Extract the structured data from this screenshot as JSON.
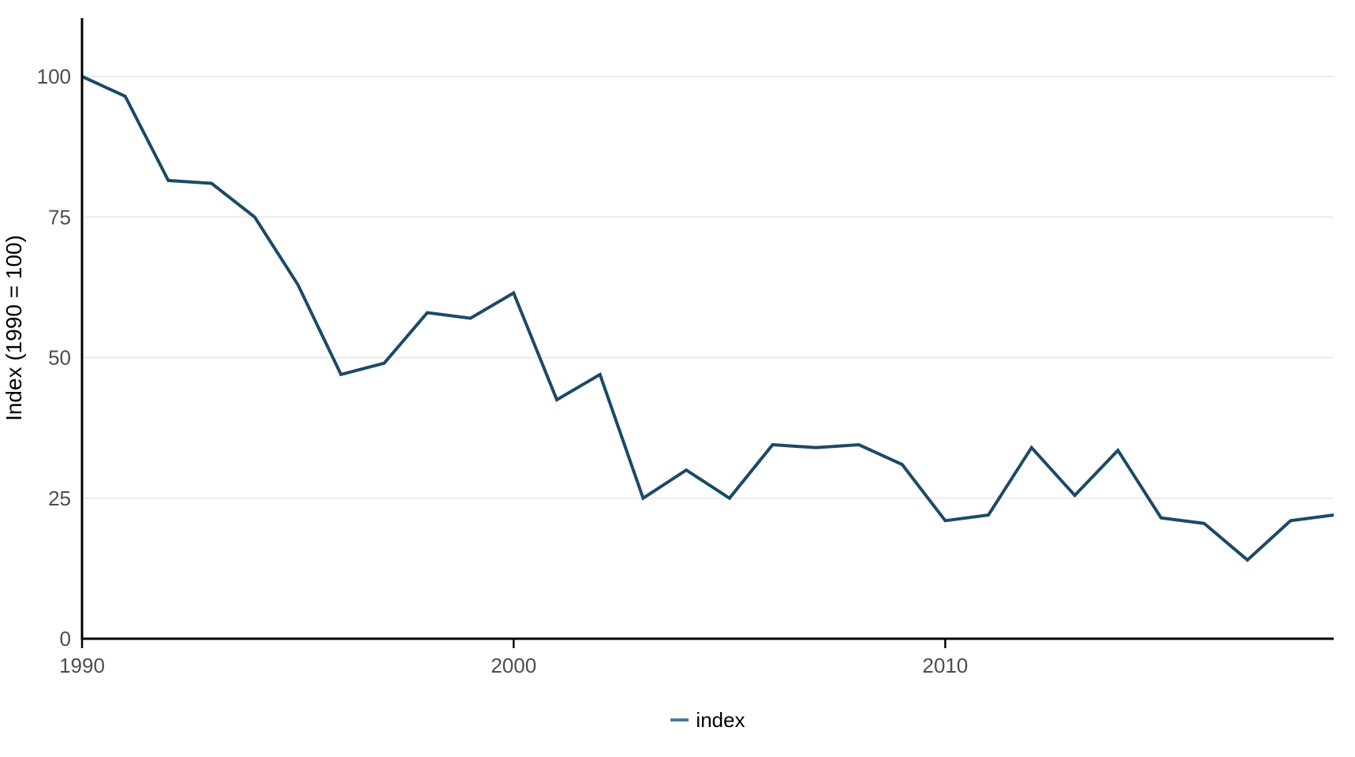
{
  "chart_data": {
    "type": "line",
    "title": "",
    "xlabel": "",
    "ylabel": "Index (1990 = 100)",
    "x": [
      1990,
      1991,
      1992,
      1993,
      1994,
      1995,
      1996,
      1997,
      1998,
      1999,
      2000,
      2001,
      2002,
      2003,
      2004,
      2005,
      2006,
      2007,
      2008,
      2009,
      2010,
      2011,
      2012,
      2013,
      2014,
      2015,
      2016,
      2017,
      2018,
      2019
    ],
    "series": [
      {
        "name": "index",
        "values": [
          100,
          96.5,
          81.5,
          81,
          75,
          63,
          47,
          49,
          58,
          57,
          61.5,
          42.5,
          47,
          25,
          30,
          25,
          34.5,
          34,
          34.5,
          31,
          21,
          22,
          34,
          25.5,
          33.5,
          21.5,
          20.5,
          14,
          21,
          22
        ]
      }
    ],
    "xlim": [
      1990,
      2019
    ],
    "ylim": [
      0,
      110
    ],
    "x_ticks": [
      1990,
      2000,
      2010
    ],
    "y_ticks": [
      0,
      25,
      50,
      75,
      100
    ],
    "grid": "horizontal-major-only",
    "legend_position": "bottom-center",
    "colors": {
      "line": "#1b4a65",
      "legend_swatch": "#4d7a9e",
      "axis": "#000000",
      "tick_label": "#4d4d4d",
      "grid": "#ebebeb",
      "background": "#ffffff"
    }
  },
  "legend": {
    "label": "index"
  }
}
